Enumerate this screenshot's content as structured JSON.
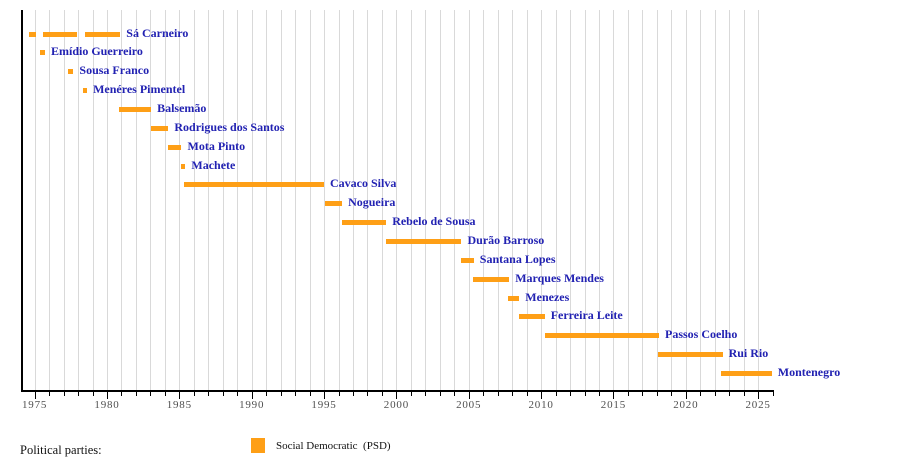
{
  "chart_data": {
    "type": "timeline",
    "title": "",
    "x_axis": {
      "year_start": 1974.1,
      "year_end": 2026.1,
      "tick_interval_years": 1,
      "label_interval_years": 5,
      "labels": [
        "1975",
        "1980",
        "1985",
        "1990",
        "1995",
        "2000",
        "2005",
        "2010",
        "2015",
        "2020",
        "2025"
      ],
      "grid": "on"
    },
    "rows": [
      {
        "name": "Sá Carneiro",
        "party": "PSD",
        "terms": [
          [
            1974.6,
            1975.12
          ],
          [
            1975.6,
            1977.92
          ],
          [
            1978.45,
            1980.92
          ]
        ]
      },
      {
        "name": "Emídio Guerreiro",
        "party": "PSD",
        "terms": [
          [
            1975.4,
            1975.72
          ]
        ]
      },
      {
        "name": "Sousa Franco",
        "party": "PSD",
        "terms": [
          [
            1977.3,
            1977.68
          ]
        ]
      },
      {
        "name": "Menéres Pimentel",
        "party": "PSD",
        "terms": [
          [
            1978.35,
            1978.63
          ]
        ]
      },
      {
        "name": "Balsemão",
        "party": "PSD",
        "terms": [
          [
            1980.85,
            1983.05
          ]
        ]
      },
      {
        "name": "Rodrigues dos Santos",
        "party": "PSD",
        "terms": [
          [
            1983.05,
            1984.25
          ]
        ]
      },
      {
        "name": "Mota Pinto",
        "party": "PSD",
        "terms": [
          [
            1984.2,
            1985.15
          ]
        ]
      },
      {
        "name": "Machete",
        "party": "PSD",
        "terms": [
          [
            1985.08,
            1985.42
          ]
        ]
      },
      {
        "name": "Cavaco Silva",
        "party": "PSD",
        "terms": [
          [
            1985.3,
            1995.0
          ]
        ]
      },
      {
        "name": "Nogueira",
        "party": "PSD",
        "terms": [
          [
            1995.1,
            1996.25
          ]
        ]
      },
      {
        "name": "Rebelo de Sousa",
        "party": "PSD",
        "terms": [
          [
            1996.25,
            1999.3
          ]
        ]
      },
      {
        "name": "Durão Barroso",
        "party": "PSD",
        "terms": [
          [
            1999.3,
            2004.5
          ]
        ]
      },
      {
        "name": "Santana Lopes",
        "party": "PSD",
        "terms": [
          [
            2004.45,
            2005.35
          ]
        ]
      },
      {
        "name": "Marques Mendes",
        "party": "PSD",
        "terms": [
          [
            2005.3,
            2007.8
          ]
        ]
      },
      {
        "name": "Menezes",
        "party": "PSD",
        "terms": [
          [
            2007.7,
            2008.5
          ]
        ]
      },
      {
        "name": "Ferreira Leite",
        "party": "PSD",
        "terms": [
          [
            2008.45,
            2010.25
          ]
        ]
      },
      {
        "name": "Passos Coelho",
        "party": "PSD",
        "terms": [
          [
            2010.3,
            2018.15
          ]
        ]
      },
      {
        "name": "Rui Rio",
        "party": "PSD",
        "terms": [
          [
            2018.1,
            2022.55
          ]
        ]
      },
      {
        "name": "Montenegro",
        "party": "PSD",
        "terms": [
          [
            2022.4,
            2025.95
          ]
        ]
      }
    ],
    "colors": {
      "bar": "#fe9f16",
      "name_text": "#2222b2",
      "year_text": "#4f4f4f",
      "gridline": "#d9d9d9",
      "axis": "#000000"
    },
    "legend": {
      "heading": "Political parties:",
      "items": [
        {
          "label": "Social Democratic  (PSD)",
          "color": "#fe9f16"
        }
      ]
    }
  }
}
